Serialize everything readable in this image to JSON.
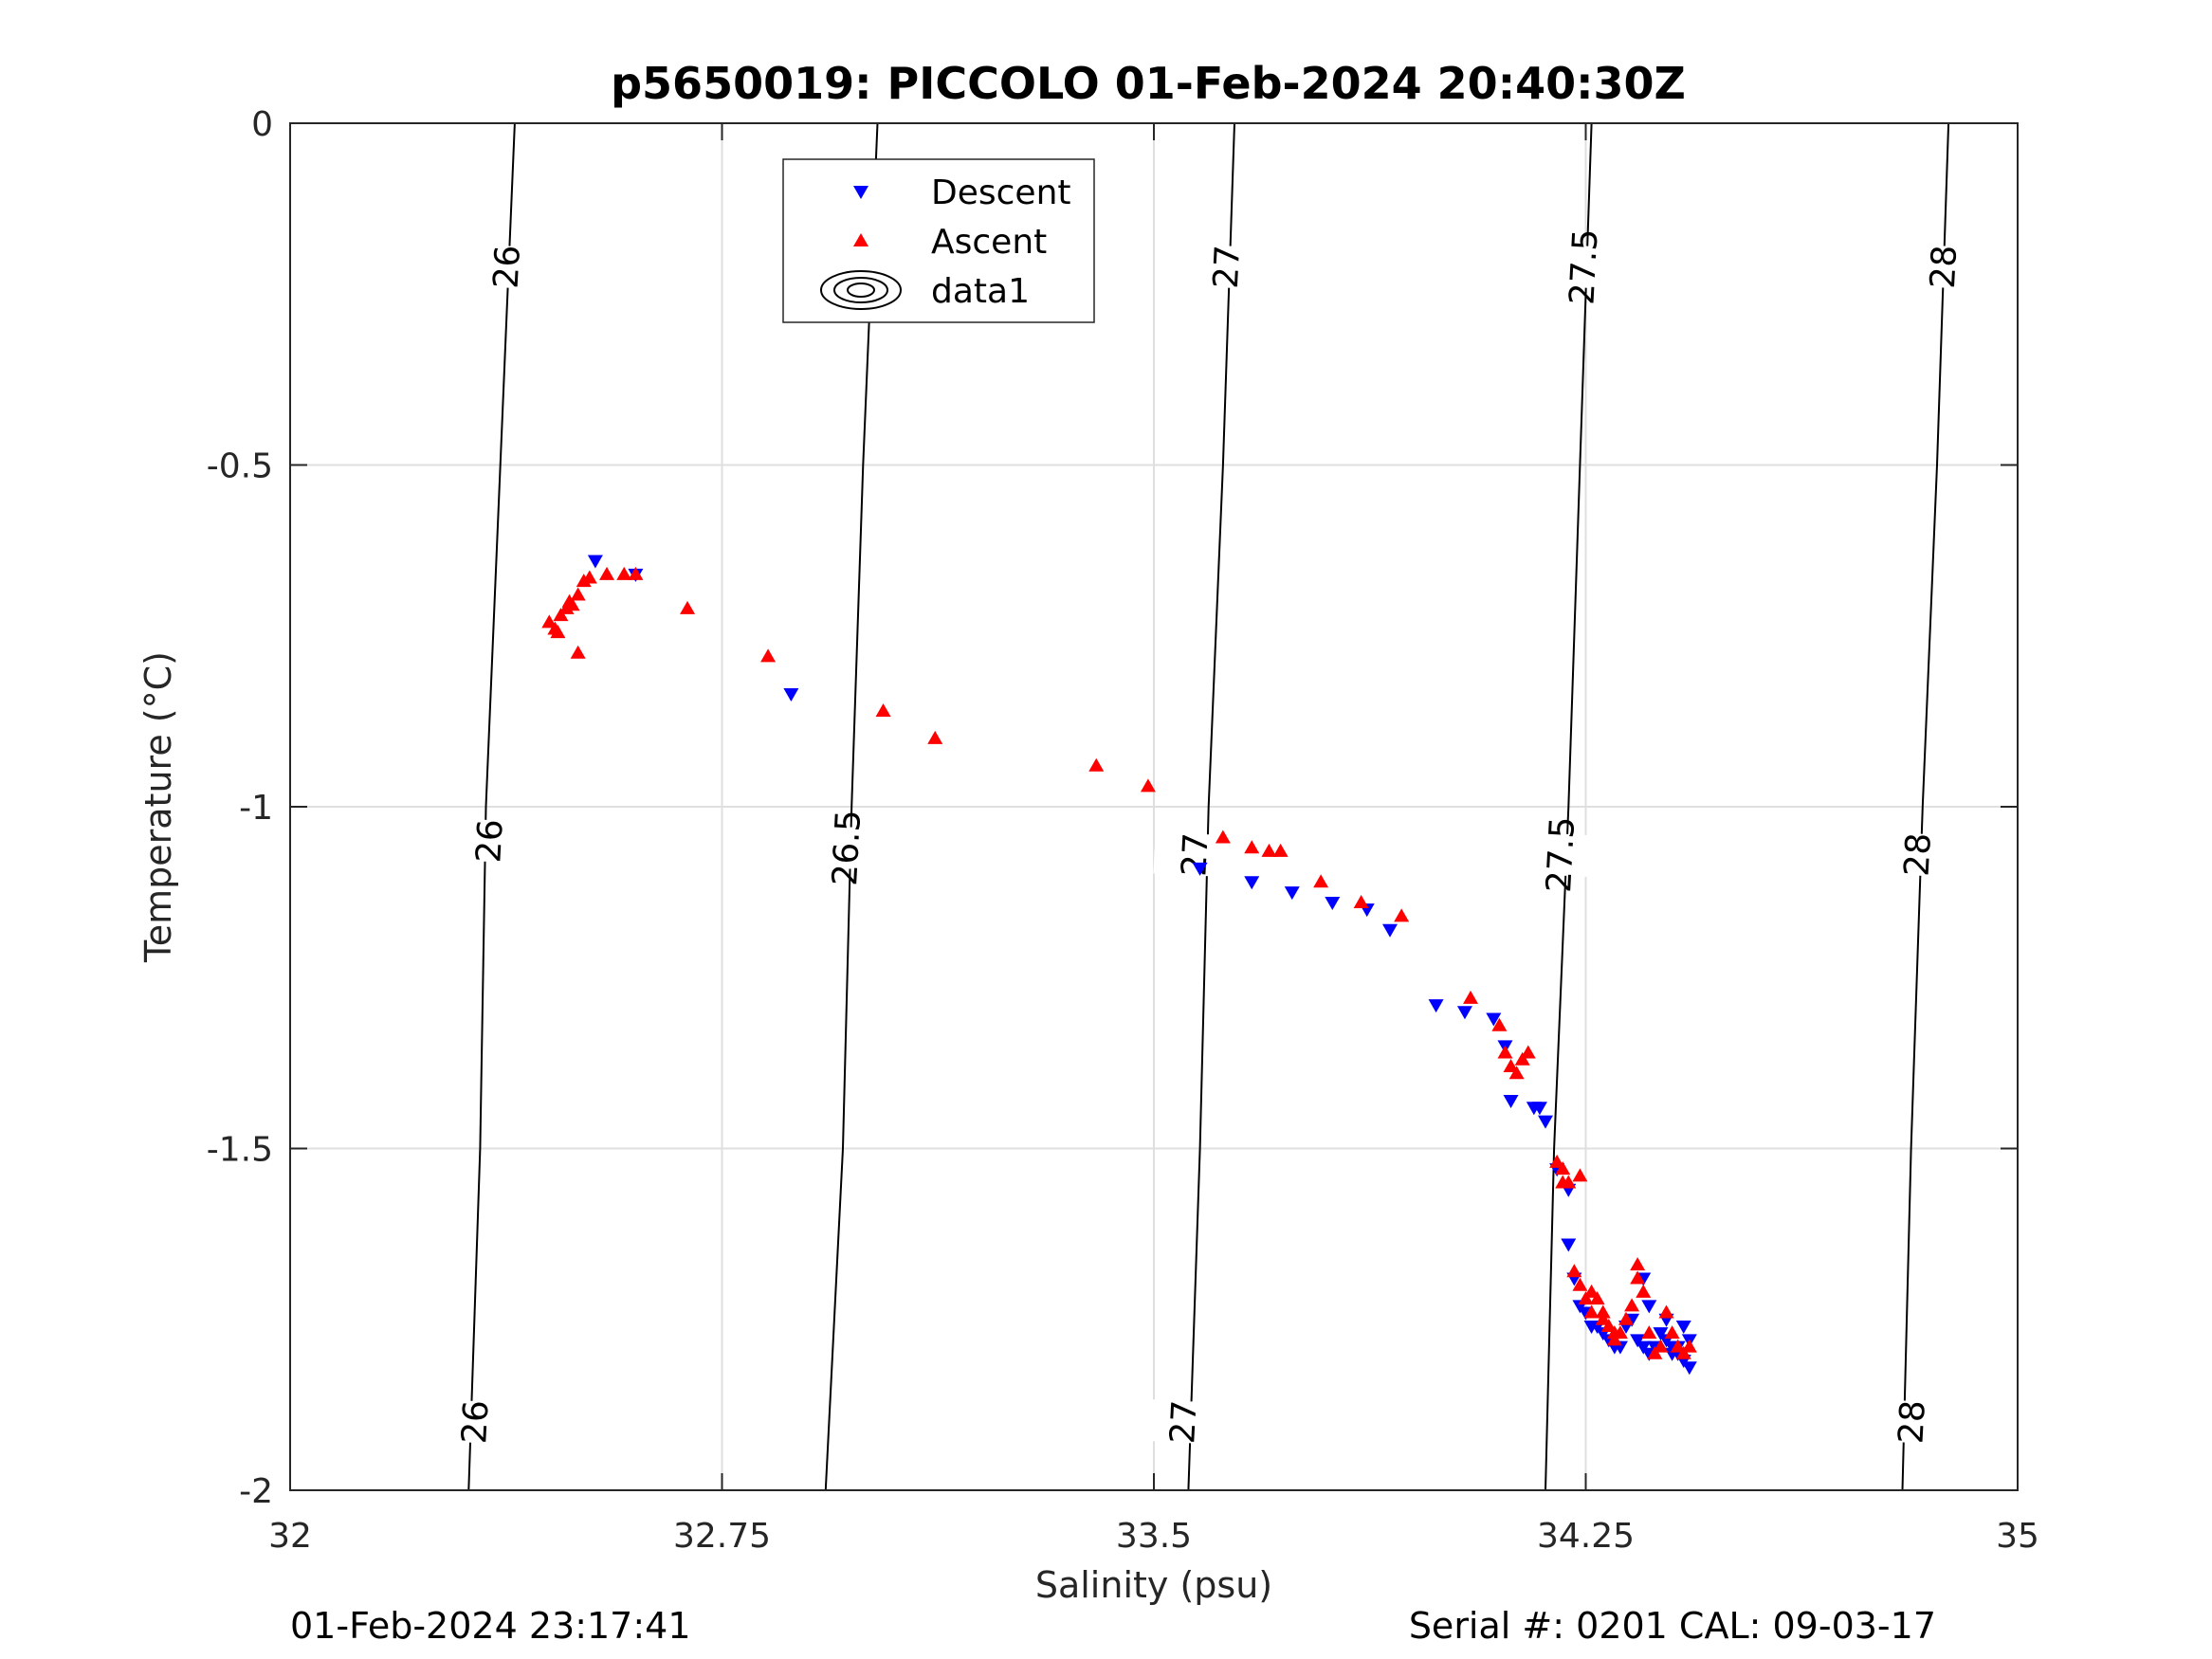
{
  "chart_data": {
    "type": "scatter",
    "title": "p5650019: PICCOLO 01-Feb-2024 20:40:30Z",
    "xlabel": "Salinity (psu)",
    "ylabel": "Temperature (°C)",
    "xlim": [
      32,
      35
    ],
    "ylim": [
      -2,
      0
    ],
    "xticks": [
      32,
      32.75,
      33.5,
      34.25,
      35
    ],
    "xtick_labels": [
      "32",
      "32.75",
      "33.5",
      "34.25",
      "35"
    ],
    "yticks": [
      -2,
      -1.5,
      -1,
      -0.5,
      0
    ],
    "ytick_labels": [
      "-2",
      "-1.5",
      "-1",
      "-0.5",
      "0"
    ],
    "grid": true,
    "legend_position": "top",
    "footer_left": "01-Feb-2024 23:17:41",
    "footer_right": "Serial #: 0201  CAL: 09-03-17",
    "colors": {
      "descent": "#0000ff",
      "ascent": "#ff0000",
      "contour": "#000000",
      "grid": "#dfdfdf"
    },
    "density_contours": [
      {
        "label": "26",
        "points": [
          [
            32.39,
            0
          ],
          [
            32.365,
            -0.5
          ],
          [
            32.34,
            -1.0
          ],
          [
            32.33,
            -1.5
          ],
          [
            32.31,
            -2.0
          ]
        ],
        "label_positions": [
          [
            32.375,
            -0.21
          ],
          [
            32.345,
            -1.05
          ],
          [
            32.32,
            -1.9
          ]
        ]
      },
      {
        "label": "26.5",
        "points": [
          [
            33.02,
            0
          ],
          [
            32.995,
            -0.5
          ],
          [
            32.975,
            -1.0
          ],
          [
            32.96,
            -1.5
          ],
          [
            32.93,
            -2.0
          ]
        ],
        "label_positions": [
          [
            33.01,
            -0.19
          ],
          [
            32.965,
            -1.06
          ]
        ]
      },
      {
        "label": "27",
        "points": [
          [
            33.64,
            0
          ],
          [
            33.62,
            -0.5
          ],
          [
            33.595,
            -1.0
          ],
          [
            33.58,
            -1.5
          ],
          [
            33.56,
            -2.0
          ]
        ],
        "label_positions": [
          [
            33.625,
            -0.21
          ],
          [
            33.57,
            -1.07
          ],
          [
            33.55,
            -1.9
          ]
        ]
      },
      {
        "label": "27.5",
        "points": [
          [
            34.26,
            0
          ],
          [
            34.24,
            -0.5
          ],
          [
            34.22,
            -1.0
          ],
          [
            34.195,
            -1.5
          ],
          [
            34.18,
            -2.0
          ]
        ],
        "label_positions": [
          [
            34.245,
            -0.21
          ],
          [
            34.205,
            -1.07
          ]
        ]
      },
      {
        "label": "28",
        "points": [
          [
            34.88,
            0
          ],
          [
            34.86,
            -0.5
          ],
          [
            34.835,
            -1.0
          ],
          [
            34.815,
            -1.5
          ],
          [
            34.8,
            -2.0
          ]
        ],
        "label_positions": [
          [
            34.87,
            -0.21
          ],
          [
            34.825,
            -1.07
          ],
          [
            34.815,
            -1.9
          ]
        ]
      }
    ],
    "legend": [
      {
        "name": "Descent",
        "marker": "triangle-down",
        "color": "#0000ff"
      },
      {
        "name": "Ascent",
        "marker": "triangle-up",
        "color": "#ff0000"
      },
      {
        "name": "data1",
        "marker": "contour",
        "color": "#000000"
      }
    ],
    "series": [
      {
        "name": "Descent",
        "marker": "triangle-down",
        "color": "#0000ff",
        "points": [
          [
            32.53,
            -0.64
          ],
          [
            32.6,
            -0.66
          ],
          [
            32.87,
            -0.835
          ],
          [
            33.58,
            -1.09
          ],
          [
            33.67,
            -1.11
          ],
          [
            33.74,
            -1.125
          ],
          [
            33.81,
            -1.14
          ],
          [
            33.87,
            -1.15
          ],
          [
            33.91,
            -1.18
          ],
          [
            33.99,
            -1.29
          ],
          [
            34.04,
            -1.3
          ],
          [
            34.09,
            -1.31
          ],
          [
            34.11,
            -1.35
          ],
          [
            34.12,
            -1.43
          ],
          [
            34.16,
            -1.44
          ],
          [
            34.17,
            -1.44
          ],
          [
            34.18,
            -1.46
          ],
          [
            34.2,
            -1.53
          ],
          [
            34.22,
            -1.56
          ],
          [
            34.22,
            -1.64
          ],
          [
            34.23,
            -1.69
          ],
          [
            34.24,
            -1.73
          ],
          [
            34.25,
            -1.74
          ],
          [
            34.26,
            -1.76
          ],
          [
            34.27,
            -1.76
          ],
          [
            34.28,
            -1.77
          ],
          [
            34.29,
            -1.78
          ],
          [
            34.3,
            -1.79
          ],
          [
            34.31,
            -1.79
          ],
          [
            34.32,
            -1.76
          ],
          [
            34.33,
            -1.75
          ],
          [
            34.34,
            -1.78
          ],
          [
            34.35,
            -1.79
          ],
          [
            34.36,
            -1.8
          ],
          [
            34.37,
            -1.79
          ],
          [
            34.38,
            -1.77
          ],
          [
            34.39,
            -1.78
          ],
          [
            34.4,
            -1.79
          ],
          [
            34.41,
            -1.8
          ],
          [
            34.42,
            -1.81
          ],
          [
            34.43,
            -1.82
          ],
          [
            34.43,
            -1.78
          ],
          [
            34.35,
            -1.69
          ],
          [
            34.36,
            -1.73
          ],
          [
            34.39,
            -1.75
          ],
          [
            34.42,
            -1.76
          ],
          [
            34.4,
            -1.8
          ],
          [
            34.41,
            -1.79
          ]
        ]
      },
      {
        "name": "Ascent",
        "marker": "triangle-up",
        "color": "#ff0000",
        "points": [
          [
            32.45,
            -0.73
          ],
          [
            32.46,
            -0.74
          ],
          [
            32.465,
            -0.745
          ],
          [
            32.47,
            -0.72
          ],
          [
            32.48,
            -0.71
          ],
          [
            32.485,
            -0.7
          ],
          [
            32.49,
            -0.705
          ],
          [
            32.5,
            -0.69
          ],
          [
            32.51,
            -0.67
          ],
          [
            32.52,
            -0.665
          ],
          [
            32.55,
            -0.66
          ],
          [
            32.58,
            -0.66
          ],
          [
            32.6,
            -0.66
          ],
          [
            32.5,
            -0.775
          ],
          [
            32.69,
            -0.71
          ],
          [
            32.83,
            -0.78
          ],
          [
            33.03,
            -0.86
          ],
          [
            33.12,
            -0.9
          ],
          [
            33.4,
            -0.94
          ],
          [
            33.49,
            -0.97
          ],
          [
            33.62,
            -1.045
          ],
          [
            33.67,
            -1.06
          ],
          [
            33.7,
            -1.065
          ],
          [
            33.72,
            -1.065
          ],
          [
            33.79,
            -1.11
          ],
          [
            33.86,
            -1.14
          ],
          [
            33.93,
            -1.16
          ],
          [
            34.05,
            -1.28
          ],
          [
            34.1,
            -1.32
          ],
          [
            34.11,
            -1.36
          ],
          [
            34.12,
            -1.38
          ],
          [
            34.13,
            -1.39
          ],
          [
            34.15,
            -1.36
          ],
          [
            34.14,
            -1.37
          ],
          [
            34.2,
            -1.52
          ],
          [
            34.21,
            -1.53
          ],
          [
            34.21,
            -1.55
          ],
          [
            34.22,
            -1.55
          ],
          [
            34.24,
            -1.54
          ],
          [
            34.23,
            -1.68
          ],
          [
            34.24,
            -1.7
          ],
          [
            34.26,
            -1.71
          ],
          [
            34.27,
            -1.72
          ],
          [
            34.28,
            -1.74
          ],
          [
            34.29,
            -1.76
          ],
          [
            34.3,
            -1.78
          ],
          [
            34.31,
            -1.77
          ],
          [
            34.32,
            -1.75
          ],
          [
            34.33,
            -1.73
          ],
          [
            34.34,
            -1.69
          ],
          [
            34.35,
            -1.71
          ],
          [
            34.36,
            -1.77
          ],
          [
            34.37,
            -1.8
          ],
          [
            34.38,
            -1.79
          ],
          [
            34.39,
            -1.74
          ],
          [
            34.4,
            -1.77
          ],
          [
            34.41,
            -1.79
          ],
          [
            34.42,
            -1.8
          ],
          [
            34.34,
            -1.67
          ],
          [
            34.3,
            -1.77
          ],
          [
            34.28,
            -1.75
          ],
          [
            34.26,
            -1.74
          ],
          [
            34.25,
            -1.72
          ],
          [
            34.43,
            -1.79
          ]
        ]
      }
    ]
  }
}
